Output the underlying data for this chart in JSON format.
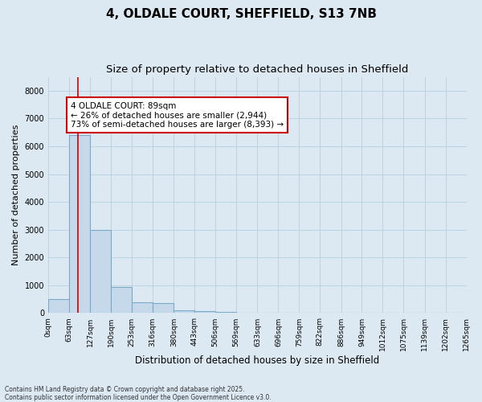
{
  "title_line1": "4, OLDALE COURT, SHEFFIELD, S13 7NB",
  "title_line2": "Size of property relative to detached houses in Sheffield",
  "xlabel": "Distribution of detached houses by size in Sheffield",
  "ylabel": "Number of detached properties",
  "bar_color": "#c6d9ea",
  "bar_edge_color": "#7aaac8",
  "grid_color": "#b8cfe0",
  "background_color": "#dce8f2",
  "fig_background_color": "#dce8f2",
  "annotation_text": "4 OLDALE COURT: 89sqm\n← 26% of detached houses are smaller (2,944)\n73% of semi-detached houses are larger (8,393) →",
  "vline_x": 89,
  "vline_color": "#cc0000",
  "annotation_box_edgecolor": "#cc0000",
  "bin_edges": [
    0,
    63,
    127,
    190,
    253,
    316,
    380,
    443,
    506,
    569,
    633,
    696,
    759,
    822,
    886,
    949,
    1012,
    1075,
    1139,
    1202,
    1265
  ],
  "bar_heights": [
    500,
    6400,
    3000,
    950,
    400,
    370,
    110,
    60,
    30,
    0,
    0,
    0,
    0,
    0,
    0,
    0,
    0,
    0,
    0,
    0
  ],
  "ylim": [
    0,
    8500
  ],
  "yticks": [
    0,
    1000,
    2000,
    3000,
    4000,
    5000,
    6000,
    7000,
    8000
  ],
  "footer_text": "Contains HM Land Registry data © Crown copyright and database right 2025.\nContains public sector information licensed under the Open Government Licence v3.0.",
  "title_fontsize": 11,
  "subtitle_fontsize": 9.5,
  "tick_fontsize": 6.5,
  "ylabel_fontsize": 8,
  "xlabel_fontsize": 8.5,
  "annotation_fontsize": 7.5
}
